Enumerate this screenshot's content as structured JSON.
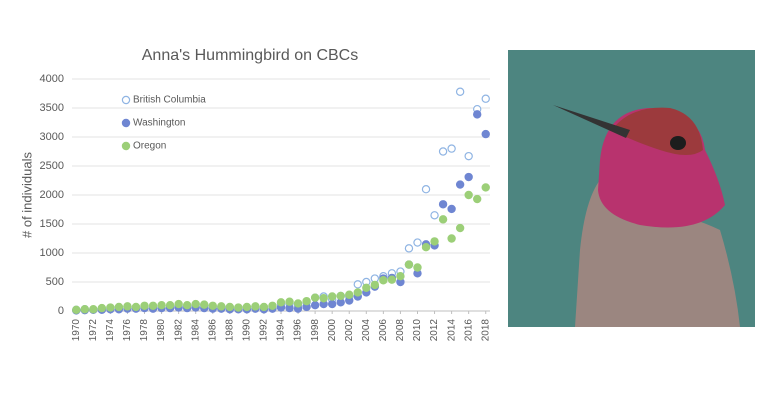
{
  "chart_data": {
    "type": "scatter",
    "title": "Anna's Hummingbird on CBCs",
    "y_label": "# of individuals",
    "x": [
      1970,
      1971,
      1972,
      1973,
      1974,
      1975,
      1976,
      1977,
      1978,
      1979,
      1980,
      1981,
      1982,
      1983,
      1984,
      1985,
      1986,
      1987,
      1988,
      1989,
      1990,
      1991,
      1992,
      1993,
      1994,
      1995,
      1996,
      1997,
      1998,
      1999,
      2000,
      2001,
      2002,
      2003,
      2004,
      2005,
      2006,
      2007,
      2008,
      2009,
      2010,
      2011,
      2012,
      2013,
      2014,
      2015,
      2016,
      2017,
      2018
    ],
    "series": [
      {
        "name": "British Columbia",
        "color": "#8fb4e3",
        "hollow": true,
        "values": [
          20,
          30,
          25,
          40,
          50,
          60,
          70,
          60,
          80,
          70,
          90,
          80,
          100,
          90,
          110,
          100,
          80,
          70,
          60,
          50,
          60,
          70,
          60,
          80,
          120,
          130,
          100,
          150,
          230,
          250,
          200,
          260,
          250,
          460,
          500,
          560,
          600,
          650,
          680,
          1080,
          1180,
          2100,
          1650,
          2750,
          2800,
          3780,
          2670,
          3480,
          3660
        ]
      },
      {
        "name": "Washington",
        "color": "#6f86d2",
        "hollow": false,
        "values": [
          10,
          15,
          20,
          20,
          30,
          30,
          40,
          40,
          50,
          40,
          50,
          50,
          60,
          50,
          60,
          50,
          40,
          40,
          30,
          30,
          30,
          40,
          30,
          40,
          60,
          50,
          40,
          70,
          100,
          120,
          120,
          150,
          180,
          250,
          320,
          420,
          560,
          570,
          500,
          800,
          650,
          1150,
          1130,
          1840,
          1760,
          2180,
          2310,
          3390,
          3050
        ]
      },
      {
        "name": "Oregon",
        "color": "#9ccf78",
        "hollow": false,
        "values": [
          20,
          30,
          30,
          50,
          60,
          70,
          80,
          70,
          90,
          90,
          100,
          100,
          120,
          100,
          120,
          110,
          90,
          80,
          70,
          60,
          70,
          80,
          70,
          90,
          150,
          160,
          130,
          170,
          230,
          220,
          250,
          260,
          280,
          320,
          400,
          450,
          530,
          540,
          600,
          800,
          750,
          1100,
          1200,
          1580,
          1250,
          1430,
          2000,
          1930,
          2130
        ]
      }
    ],
    "xlim": [
      1969.5,
      2018.5
    ],
    "xticks": [
      1970,
      1972,
      1974,
      1976,
      1978,
      1980,
      1982,
      1984,
      1986,
      1988,
      1990,
      1992,
      1994,
      1996,
      1998,
      2000,
      2002,
      2004,
      2006,
      2008,
      2010,
      2012,
      2014,
      2016,
      2018
    ],
    "ylim": [
      0,
      4000
    ],
    "yticks": [
      0,
      500,
      1000,
      1500,
      2000,
      2500,
      3000,
      3500,
      4000
    ],
    "grid": true,
    "legend": "upper left"
  }
}
